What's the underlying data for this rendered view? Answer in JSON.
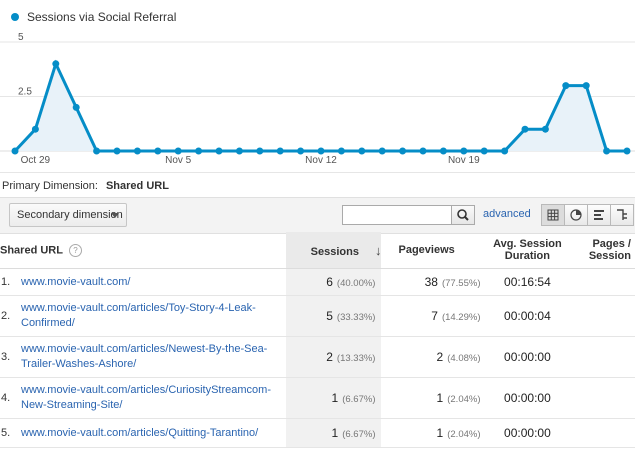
{
  "chart": {
    "legend": "Sessions via Social Referral",
    "color": "#058dc7"
  },
  "chart_data": {
    "type": "area",
    "title": "",
    "series": [
      {
        "name": "Sessions via Social Referral",
        "values": [
          0,
          1,
          4,
          2,
          0,
          0,
          0,
          0,
          0,
          0,
          0,
          0,
          0,
          0,
          0,
          0,
          0,
          0,
          0,
          0,
          0,
          0,
          0,
          0,
          0,
          1,
          1,
          3,
          3,
          0,
          0
        ]
      }
    ],
    "x_tick_labels": [
      "Oct 29",
      "Nov 5",
      "Nov 12",
      "Nov 19"
    ],
    "y_tick_labels": [
      "5",
      "2.5"
    ],
    "ylim": [
      0,
      5
    ],
    "grid": true
  },
  "primary_dimension": {
    "label": "Primary Dimension:",
    "value": "Shared URL"
  },
  "toolbar": {
    "secondary_dimension": "Secondary dimension",
    "search_value": "",
    "advanced_label": "advanced"
  },
  "table": {
    "headers": {
      "url": "Shared URL",
      "sessions": "Sessions",
      "pageviews": "Pageviews",
      "duration": "Avg. Session Duration",
      "pages_per_session": "Pages / Session"
    },
    "rows": [
      {
        "num": "1.",
        "url": "www.movie-vault.com/",
        "sessions": "6",
        "sessions_pct": "(40.00%)",
        "pageviews": "38",
        "pageviews_pct": "(77.55%)",
        "duration": "00:16:54"
      },
      {
        "num": "2.",
        "url": "www.movie-vault.com/articles/Toy-Story-4-Leak-Confirmed/",
        "sessions": "5",
        "sessions_pct": "(33.33%)",
        "pageviews": "7",
        "pageviews_pct": "(14.29%)",
        "duration": "00:00:04"
      },
      {
        "num": "3.",
        "url": "www.movie-vault.com/articles/Newest-By-the-Sea-Trailer-Washes-Ashore/",
        "sessions": "2",
        "sessions_pct": "(13.33%)",
        "pageviews": "2",
        "pageviews_pct": "(4.08%)",
        "duration": "00:00:00"
      },
      {
        "num": "4.",
        "url": "www.movie-vault.com/articles/CuriosityStreamcom-New-Streaming-Site/",
        "sessions": "1",
        "sessions_pct": "(6.67%)",
        "pageviews": "1",
        "pageviews_pct": "(2.04%)",
        "duration": "00:00:00"
      },
      {
        "num": "5.",
        "url": "www.movie-vault.com/articles/Quitting-Tarantino/",
        "sessions": "1",
        "sessions_pct": "(6.67%)",
        "pageviews": "1",
        "pageviews_pct": "(2.04%)",
        "duration": "00:00:00"
      }
    ]
  }
}
